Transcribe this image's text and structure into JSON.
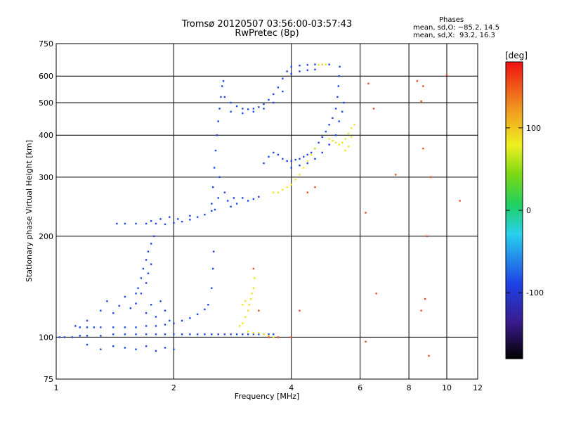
{
  "header": {
    "title_line1": "Tromsø 20120507 03:56:00-03:57:43",
    "title_line2": "RwPretec (8p)"
  },
  "phases_box": {
    "heading": "Phases",
    "line_o": "mean, sd,O: −85.2, 14.5",
    "line_x": "mean, sd,X:  93.2, 16.3"
  },
  "chart_data": {
    "type": "scatter",
    "title": "Tromsø 20120507 03:56:00-03:57:43",
    "subtitle": "RwPretec (8p)",
    "xlabel": "Frequency [MHz]",
    "ylabel": "Stationary phase Virtual Height [km]",
    "x_scale": "log",
    "y_scale": "log",
    "xlim": [
      1,
      12
    ],
    "ylim": [
      75,
      750
    ],
    "x_ticks": [
      1,
      2,
      4,
      6,
      8,
      10,
      12
    ],
    "y_ticks": [
      75,
      100,
      200,
      300,
      400,
      500,
      600,
      750
    ],
    "grid": true,
    "colorbar": {
      "label": "[deg]",
      "range": [
        -180,
        180
      ],
      "ticks": [
        100,
        0,
        -100
      ]
    },
    "colors": {
      "o_trace": "#1e46e6",
      "x_trace": "#f0e61e",
      "low_phase": "#3a2cc8",
      "cyan": "#28c8e6",
      "scatter_red": "#e0501e"
    },
    "series": [
      {
        "points": [
          [
            1.02,
            100
          ],
          [
            1.05,
            100
          ],
          [
            1.1,
            100
          ],
          [
            1.15,
            101
          ],
          [
            1.2,
            101
          ],
          [
            1.3,
            101
          ],
          [
            1.4,
            102
          ],
          [
            1.5,
            102
          ],
          [
            1.6,
            102
          ],
          [
            1.7,
            102
          ],
          [
            1.8,
            102
          ],
          [
            1.9,
            102
          ],
          [
            2.0,
            102
          ],
          [
            2.1,
            102
          ],
          [
            2.2,
            102
          ],
          [
            2.3,
            102
          ],
          [
            2.4,
            102
          ],
          [
            2.5,
            102
          ],
          [
            2.6,
            102
          ],
          [
            2.7,
            102
          ],
          [
            2.8,
            102
          ],
          [
            2.9,
            102
          ],
          [
            3.0,
            102
          ],
          [
            3.1,
            102
          ],
          [
            3.2,
            102
          ],
          [
            3.3,
            102
          ],
          [
            3.4,
            102
          ],
          [
            3.5,
            102
          ],
          [
            3.6,
            102
          ],
          [
            1.12,
            108
          ],
          [
            1.15,
            107
          ],
          [
            1.2,
            107
          ],
          [
            1.25,
            107
          ],
          [
            1.3,
            107
          ],
          [
            1.4,
            107
          ],
          [
            1.5,
            107
          ],
          [
            1.6,
            107
          ],
          [
            1.7,
            108
          ],
          [
            1.8,
            108
          ],
          [
            1.9,
            109
          ],
          [
            2.0,
            110
          ],
          [
            2.1,
            112
          ],
          [
            2.2,
            114
          ],
          [
            2.3,
            117
          ],
          [
            2.4,
            121
          ],
          [
            2.45,
            125
          ],
          [
            2.5,
            140
          ],
          [
            2.52,
            160
          ],
          [
            2.53,
            180
          ],
          [
            1.2,
            112
          ],
          [
            1.3,
            120
          ],
          [
            1.35,
            128
          ],
          [
            1.4,
            118
          ],
          [
            1.45,
            124
          ],
          [
            1.5,
            132
          ],
          [
            1.55,
            122
          ],
          [
            1.6,
            126
          ],
          [
            1.65,
            135
          ],
          [
            1.7,
            118
          ],
          [
            1.75,
            125
          ],
          [
            1.8,
            115
          ],
          [
            1.85,
            128
          ],
          [
            1.9,
            120
          ],
          [
            1.95,
            112
          ],
          [
            1.2,
            95
          ],
          [
            1.3,
            92
          ],
          [
            1.4,
            94
          ],
          [
            1.5,
            93
          ],
          [
            1.6,
            92
          ],
          [
            1.7,
            94
          ],
          [
            1.8,
            91
          ],
          [
            1.9,
            93
          ],
          [
            2.0,
            92
          ],
          [
            1.62,
            140
          ],
          [
            1.65,
            150
          ],
          [
            1.67,
            160
          ],
          [
            1.7,
            170
          ],
          [
            1.72,
            180
          ],
          [
            1.75,
            190
          ],
          [
            1.78,
            200
          ],
          [
            1.6,
            135
          ],
          [
            1.7,
            145
          ],
          [
            1.72,
            155
          ],
          [
            1.75,
            165
          ],
          [
            1.43,
            218
          ],
          [
            1.5,
            218
          ],
          [
            1.6,
            218
          ],
          [
            1.7,
            218
          ],
          [
            1.8,
            218
          ],
          [
            1.9,
            217
          ],
          [
            2.0,
            219
          ],
          [
            2.1,
            221
          ],
          [
            2.2,
            224
          ],
          [
            2.3,
            228
          ],
          [
            2.4,
            232
          ],
          [
            2.5,
            238
          ],
          [
            1.75,
            222
          ],
          [
            1.85,
            225
          ],
          [
            1.95,
            228
          ],
          [
            2.05,
            225
          ],
          [
            2.2,
            230
          ],
          [
            2.5,
            250
          ],
          [
            2.52,
            280
          ],
          [
            2.54,
            320
          ],
          [
            2.56,
            360
          ],
          [
            2.58,
            400
          ],
          [
            2.6,
            440
          ],
          [
            2.62,
            480
          ],
          [
            2.64,
            520
          ],
          [
            2.66,
            560
          ],
          [
            2.68,
            580
          ],
          [
            2.55,
            240
          ],
          [
            2.6,
            260
          ],
          [
            2.62,
            300
          ],
          [
            2.7,
            270
          ],
          [
            2.75,
            255
          ],
          [
            2.8,
            245
          ],
          [
            2.85,
            260
          ],
          [
            2.9,
            250
          ],
          [
            3.0,
            260
          ],
          [
            3.1,
            255
          ],
          [
            3.2,
            258
          ],
          [
            3.3,
            262
          ],
          [
            2.7,
            520
          ],
          [
            2.8,
            500
          ],
          [
            2.9,
            488
          ],
          [
            3.0,
            480
          ],
          [
            3.1,
            478
          ],
          [
            3.2,
            480
          ],
          [
            3.3,
            485
          ],
          [
            3.4,
            495
          ],
          [
            3.5,
            510
          ],
          [
            3.6,
            530
          ],
          [
            3.7,
            555
          ],
          [
            3.8,
            590
          ],
          [
            3.9,
            620
          ],
          [
            4.0,
            640
          ],
          [
            4.2,
            645
          ],
          [
            4.4,
            648
          ],
          [
            4.6,
            650
          ],
          [
            4.8,
            650
          ],
          [
            5.0,
            650
          ],
          [
            2.8,
            470
          ],
          [
            3.0,
            465
          ],
          [
            3.2,
            470
          ],
          [
            3.4,
            480
          ],
          [
            3.6,
            500
          ],
          [
            3.8,
            540
          ],
          [
            4.0,
            610
          ],
          [
            4.2,
            620
          ],
          [
            4.4,
            625
          ],
          [
            4.6,
            628
          ],
          [
            3.4,
            330
          ],
          [
            3.5,
            345
          ],
          [
            3.6,
            355
          ],
          [
            3.7,
            350
          ],
          [
            3.8,
            340
          ],
          [
            3.9,
            335
          ],
          [
            4.0,
            335
          ],
          [
            4.1,
            338
          ],
          [
            4.2,
            340
          ],
          [
            4.3,
            345
          ],
          [
            4.4,
            350
          ],
          [
            4.5,
            355
          ],
          [
            4.6,
            365
          ],
          [
            4.7,
            380
          ],
          [
            4.8,
            395
          ],
          [
            4.9,
            410
          ],
          [
            5.0,
            430
          ],
          [
            5.1,
            450
          ],
          [
            5.2,
            480
          ],
          [
            5.25,
            520
          ],
          [
            5.28,
            560
          ],
          [
            5.3,
            600
          ],
          [
            5.32,
            640
          ],
          [
            4.0,
            320
          ],
          [
            4.2,
            325
          ],
          [
            4.4,
            330
          ],
          [
            4.6,
            340
          ],
          [
            4.8,
            355
          ],
          [
            5.0,
            375
          ],
          [
            5.2,
            400
          ],
          [
            5.3,
            440
          ],
          [
            5.4,
            470
          ],
          [
            5.45,
            500
          ]
        ]
      },
      {
        "points": [
          [
            2.95,
            108
          ],
          [
            3.0,
            110
          ],
          [
            3.05,
            115
          ],
          [
            3.1,
            120
          ],
          [
            3.12,
            125
          ],
          [
            3.15,
            130
          ],
          [
            3.17,
            135
          ],
          [
            3.2,
            140
          ],
          [
            3.22,
            150
          ],
          [
            3.0,
            125
          ],
          [
            3.05,
            128
          ],
          [
            3.1,
            104
          ],
          [
            3.2,
            103
          ],
          [
            3.3,
            103
          ],
          [
            3.4,
            102
          ],
          [
            3.5,
            101
          ],
          [
            3.6,
            100
          ],
          [
            3.6,
            270
          ],
          [
            3.7,
            270
          ],
          [
            3.8,
            275
          ],
          [
            3.9,
            280
          ],
          [
            4.0,
            285
          ],
          [
            4.1,
            295
          ],
          [
            4.2,
            305
          ],
          [
            4.3,
            320
          ],
          [
            4.4,
            335
          ],
          [
            4.5,
            350
          ],
          [
            4.6,
            365
          ],
          [
            5.0,
            390
          ],
          [
            5.1,
            385
          ],
          [
            5.2,
            380
          ],
          [
            5.3,
            375
          ],
          [
            5.4,
            380
          ],
          [
            5.5,
            390
          ],
          [
            5.6,
            405
          ],
          [
            5.7,
            420
          ],
          [
            5.5,
            360
          ],
          [
            5.6,
            370
          ],
          [
            5.7,
            395
          ],
          [
            5.8,
            430
          ],
          [
            4.8,
            650
          ],
          [
            4.9,
            650
          ],
          [
            4.7,
            648
          ]
        ]
      },
      {
        "points": [
          [
            6.3,
            570
          ],
          [
            6.5,
            480
          ],
          [
            6.2,
            235
          ],
          [
            6.6,
            135
          ],
          [
            6.2,
            97
          ],
          [
            7.4,
            305
          ],
          [
            8.4,
            580
          ],
          [
            8.7,
            560
          ],
          [
            8.6,
            505
          ],
          [
            8.7,
            365
          ],
          [
            8.9,
            200
          ],
          [
            9.1,
            300
          ],
          [
            8.6,
            120
          ],
          [
            8.8,
            130
          ],
          [
            9.0,
            88
          ],
          [
            10.0,
            605
          ],
          [
            10.8,
            255
          ],
          [
            3.2,
            160
          ],
          [
            3.3,
            120
          ],
          [
            3.5,
            100
          ],
          [
            3.7,
            100
          ],
          [
            4.0,
            100
          ],
          [
            4.2,
            120
          ],
          [
            4.4,
            270
          ],
          [
            4.6,
            280
          ]
        ]
      }
    ]
  }
}
